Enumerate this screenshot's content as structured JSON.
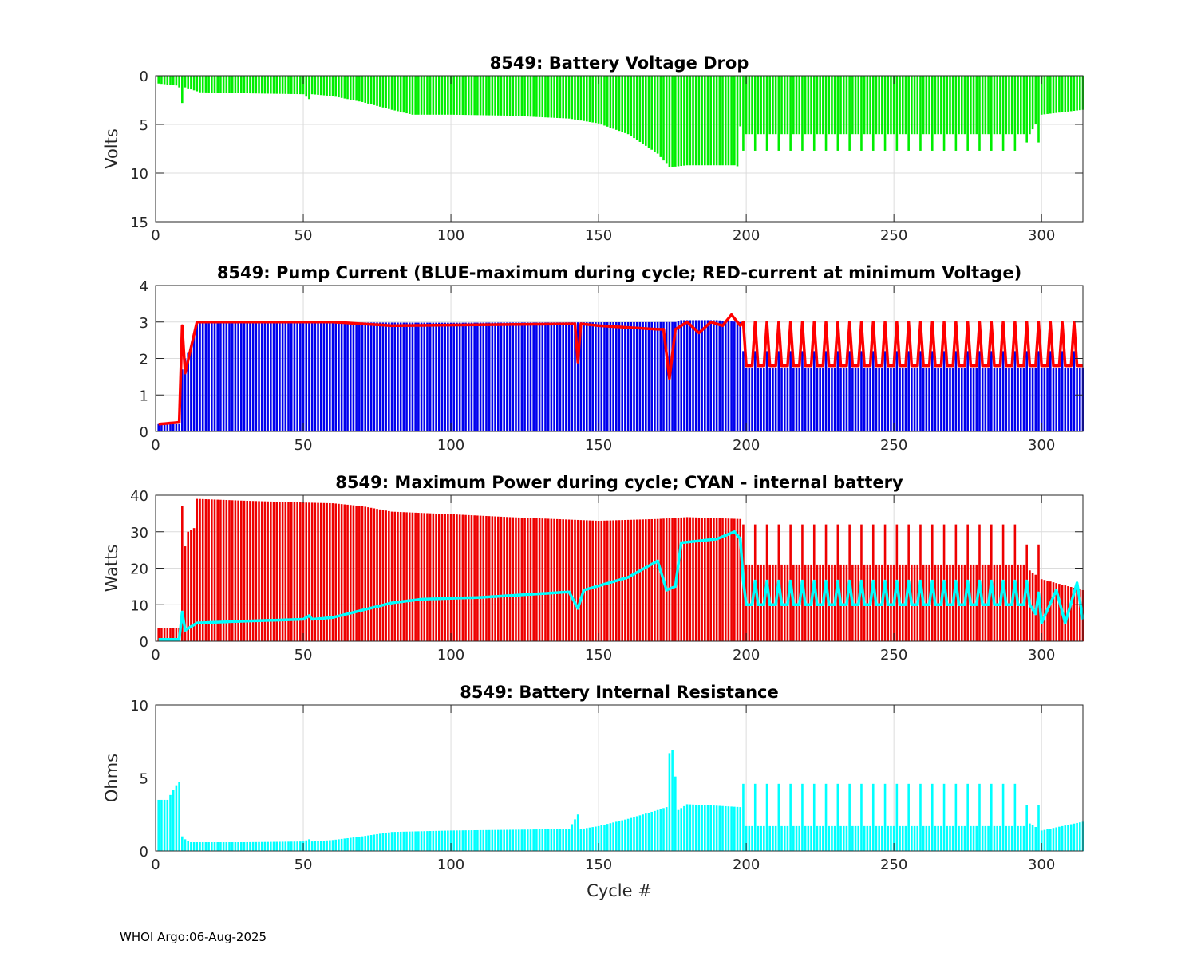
{
  "footer": "WHOI Argo:06-Aug-2025",
  "xlabel": "Cycle #",
  "chart_data": [
    {
      "id": "voltage",
      "type": "bar",
      "title": "8549: Battery Voltage Drop",
      "ylabel": "Volts",
      "xlim": [
        0,
        314
      ],
      "ylim": [
        0,
        15
      ],
      "y_reversed": true,
      "xticks": [
        0,
        50,
        100,
        150,
        200,
        250,
        300
      ],
      "yticks": [
        0,
        5,
        10,
        15
      ],
      "grid": true,
      "series": [
        {
          "name": "Battery Voltage Drop",
          "color": "#00ee00",
          "keypoints": [
            [
              1,
              0.8
            ],
            [
              7,
              1.0
            ],
            [
              8,
              1.2
            ],
            [
              9,
              2.8
            ],
            [
              10,
              1.2
            ],
            [
              12,
              1.4
            ],
            [
              15,
              1.7
            ],
            [
              30,
              1.8
            ],
            [
              50,
              1.9
            ],
            [
              52,
              2.4
            ],
            [
              53,
              1.9
            ],
            [
              60,
              2.1
            ],
            [
              70,
              2.7
            ],
            [
              80,
              3.5
            ],
            [
              87,
              4.0
            ],
            [
              100,
              4.0
            ],
            [
              120,
              4.1
            ],
            [
              140,
              4.4
            ],
            [
              150,
              4.9
            ],
            [
              160,
              6.0
            ],
            [
              170,
              8.0
            ],
            [
              174,
              9.4
            ],
            [
              180,
              9.2
            ],
            [
              196,
              9.2
            ],
            [
              197,
              9.3
            ],
            [
              198,
              5.2
            ]
          ],
          "tail": {
            "from": 199,
            "to": 314,
            "low": 6.0,
            "high": 7.7,
            "spike_high": 8.0,
            "spike_every": 4,
            "end": [
              [
                295,
                6.5
              ],
              [
                300,
                4.0
              ],
              [
                314,
                3.5
              ]
            ]
          }
        }
      ]
    },
    {
      "id": "current",
      "type": "bar_line",
      "title": "8549: Pump Current (BLUE-maximum during cycle; RED-current at minimum Voltage)",
      "ylabel": "",
      "xlim": [
        0,
        314
      ],
      "ylim": [
        0,
        4
      ],
      "xticks": [
        0,
        50,
        100,
        150,
        200,
        250,
        300
      ],
      "yticks": [
        0,
        1,
        2,
        3,
        4
      ],
      "grid": true,
      "series": [
        {
          "name": "maximum during cycle",
          "type": "bar",
          "color": "#0000ee",
          "keypoints": [
            [
              1,
              0.2
            ],
            [
              8,
              0.2
            ],
            [
              9,
              1.7
            ],
            [
              10,
              2.0
            ],
            [
              12,
              2.3
            ],
            [
              14,
              3.0
            ],
            [
              100,
              2.98
            ],
            [
              176,
              3.0
            ],
            [
              178,
              3.05
            ],
            [
              190,
              3.05
            ],
            [
              198,
              3.0
            ],
            [
              199,
              1.75
            ]
          ],
          "tail": {
            "from": 199,
            "to": 314,
            "low": 1.75,
            "high": 2.2,
            "spike_every": 4
          }
        },
        {
          "name": "current at minimum Voltage",
          "type": "line",
          "color": "#ff0000",
          "keypoints": [
            [
              1,
              0.2
            ],
            [
              8,
              0.25
            ],
            [
              9,
              2.9
            ],
            [
              10,
              1.6
            ],
            [
              12,
              2.3
            ],
            [
              14,
              3.0
            ],
            [
              60,
              3.0
            ],
            [
              80,
              2.9
            ],
            [
              142,
              2.95
            ],
            [
              143,
              1.9
            ],
            [
              144,
              2.95
            ],
            [
              150,
              2.9
            ],
            [
              170,
              2.8
            ],
            [
              172,
              2.8
            ],
            [
              174,
              1.45
            ],
            [
              176,
              2.8
            ],
            [
              180,
              3.0
            ],
            [
              184,
              2.7
            ],
            [
              188,
              3.0
            ],
            [
              192,
              2.9
            ],
            [
              195,
              3.2
            ],
            [
              198,
              2.9
            ],
            [
              199,
              1.8
            ]
          ],
          "tail": {
            "from": 199,
            "to": 314,
            "low": 1.8,
            "high": 3.0,
            "spike_every": 4
          }
        }
      ]
    },
    {
      "id": "power",
      "type": "bar_line",
      "title": "8549: Maximum Power during cycle; CYAN - internal battery",
      "ylabel": "Watts",
      "xlim": [
        0,
        314
      ],
      "ylim": [
        0,
        40
      ],
      "xticks": [
        0,
        50,
        100,
        150,
        200,
        250,
        300
      ],
      "yticks": [
        0,
        10,
        20,
        30,
        40
      ],
      "grid": true,
      "series": [
        {
          "name": "Maximum Power during cycle",
          "type": "bar",
          "color": "#ee0000",
          "keypoints": [
            [
              1,
              3.5
            ],
            [
              8,
              3.5
            ],
            [
              9,
              37.0
            ],
            [
              10,
              26.0
            ],
            [
              11,
              30.0
            ],
            [
              13,
              31.0
            ],
            [
              14,
              39.0
            ],
            [
              30,
              38.5
            ],
            [
              50,
              38.0
            ],
            [
              60,
              37.8
            ],
            [
              70,
              37.0
            ],
            [
              80,
              35.5
            ],
            [
              100,
              34.8
            ],
            [
              120,
              34.0
            ],
            [
              150,
              33.0
            ],
            [
              170,
              33.5
            ],
            [
              180,
              34.0
            ],
            [
              198,
              33.5
            ],
            [
              199,
              21.0
            ]
          ],
          "tail": {
            "from": 199,
            "to": 314,
            "low": 21.0,
            "high": 32.0,
            "spike_every": 4,
            "end": [
              [
                295,
                20.0
              ],
              [
                300,
                17.0
              ],
              [
                314,
                14.0
              ]
            ]
          }
        },
        {
          "name": "internal battery",
          "type": "line",
          "color": "#00ffff",
          "keypoints": [
            [
              1,
              0.5
            ],
            [
              8,
              0.5
            ],
            [
              9,
              8.0
            ],
            [
              10,
              3.0
            ],
            [
              12,
              4.0
            ],
            [
              14,
              5.0
            ],
            [
              30,
              5.5
            ],
            [
              50,
              6.0
            ],
            [
              52,
              7.0
            ],
            [
              53,
              6.0
            ],
            [
              60,
              6.5
            ],
            [
              70,
              8.5
            ],
            [
              80,
              10.5
            ],
            [
              90,
              11.5
            ],
            [
              110,
              12.0
            ],
            [
              140,
              13.5
            ],
            [
              143,
              9.0
            ],
            [
              145,
              14.0
            ],
            [
              160,
              17.5
            ],
            [
              170,
              22.0
            ],
            [
              173,
              14.0
            ],
            [
              176,
              15.0
            ],
            [
              178,
              27.0
            ],
            [
              190,
              28.0
            ],
            [
              196,
              30.0
            ],
            [
              198,
              28.0
            ],
            [
              199,
              11.0
            ]
          ],
          "tail": {
            "from": 199,
            "to": 314,
            "low": 10.0,
            "high": 16.5,
            "spike_every": 4,
            "end": [
              [
                296,
                10.0
              ],
              [
                300,
                5.0
              ],
              [
                305,
                14.0
              ],
              [
                308,
                5.0
              ],
              [
                312,
                16.0
              ],
              [
                314,
                6.0
              ]
            ]
          }
        }
      ]
    },
    {
      "id": "resistance",
      "type": "bar",
      "title": "8549: Battery Internal Resistance",
      "ylabel": "Ohms",
      "xlim": [
        0,
        314
      ],
      "ylim": [
        0,
        10
      ],
      "xticks": [
        0,
        50,
        100,
        150,
        200,
        250,
        300
      ],
      "yticks": [
        0,
        5,
        10
      ],
      "grid": true,
      "series": [
        {
          "name": "Battery Internal Resistance",
          "color": "#00ffff",
          "keypoints": [
            [
              1,
              3.5
            ],
            [
              4,
              3.5
            ],
            [
              7,
              4.5
            ],
            [
              8,
              4.7
            ],
            [
              9,
              1.0
            ],
            [
              10,
              0.8
            ],
            [
              12,
              0.6
            ],
            [
              30,
              0.6
            ],
            [
              50,
              0.65
            ],
            [
              52,
              0.8
            ],
            [
              53,
              0.65
            ],
            [
              60,
              0.75
            ],
            [
              70,
              1.0
            ],
            [
              80,
              1.3
            ],
            [
              100,
              1.4
            ],
            [
              140,
              1.5
            ],
            [
              143,
              2.5
            ],
            [
              144,
              1.5
            ],
            [
              150,
              1.7
            ],
            [
              160,
              2.2
            ],
            [
              170,
              2.8
            ],
            [
              173,
              3.0
            ],
            [
              174,
              6.7
            ],
            [
              175,
              6.9
            ],
            [
              176,
              5.1
            ],
            [
              177,
              2.8
            ],
            [
              180,
              3.2
            ],
            [
              190,
              3.1
            ],
            [
              198,
              3.0
            ],
            [
              199,
              1.7
            ]
          ],
          "tail": {
            "from": 199,
            "to": 314,
            "low": 1.7,
            "high": 4.6,
            "spike_every": 4,
            "end": [
              [
                295,
                2.0
              ],
              [
                300,
                1.4
              ],
              [
                314,
                2.0
              ]
            ]
          }
        }
      ]
    }
  ]
}
